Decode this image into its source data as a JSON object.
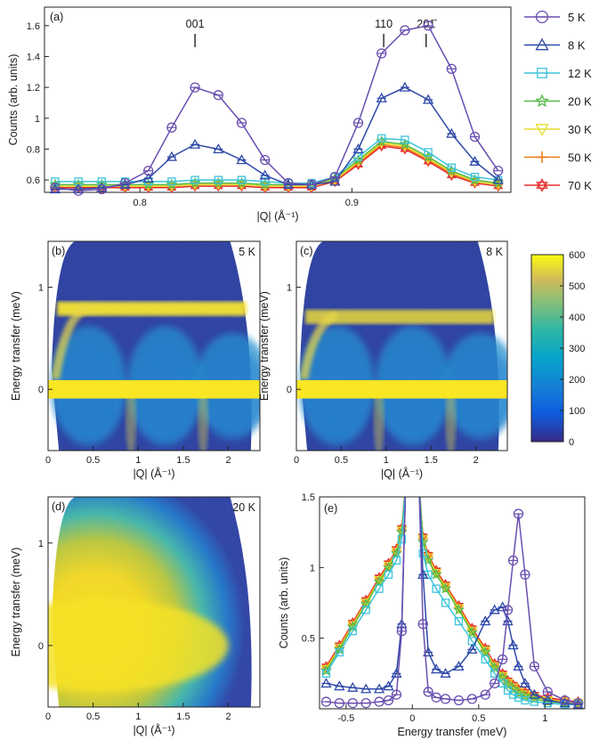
{
  "chart_data": [
    {
      "panel": "(a)",
      "type": "line",
      "xlabel": "|Q| (Å⁻¹)",
      "ylabel": "Counts (arb. units)",
      "xlim": [
        0.755,
        0.975
      ],
      "ylim": [
        0.52,
        1.72
      ],
      "xticks": [
        "0.8",
        "0.9"
      ],
      "yticks": [
        "0.6",
        "0.8",
        "1",
        "1.2",
        "1.4",
        "1.6"
      ],
      "bragg_labels": [
        "001",
        "110",
        "201̄"
      ],
      "legend_position": "right",
      "x": [
        0.76,
        0.771,
        0.782,
        0.793,
        0.804,
        0.815,
        0.826,
        0.837,
        0.848,
        0.859,
        0.87,
        0.881,
        0.892,
        0.903,
        0.914,
        0.925,
        0.936,
        0.947,
        0.958,
        0.969
      ],
      "series": [
        {
          "name": "5 K",
          "marker": "circle",
          "color": "#6a4fb0",
          "values": [
            0.55,
            0.53,
            0.54,
            0.58,
            0.66,
            0.94,
            1.2,
            1.15,
            0.97,
            0.73,
            0.58,
            0.57,
            0.62,
            0.97,
            1.42,
            1.57,
            1.6,
            1.32,
            0.88,
            0.66
          ]
        },
        {
          "name": "8 K",
          "marker": "triangle-up",
          "color": "#2f49a8",
          "values": [
            0.54,
            0.54,
            0.55,
            0.57,
            0.61,
            0.75,
            0.83,
            0.8,
            0.73,
            0.63,
            0.57,
            0.57,
            0.59,
            0.8,
            1.13,
            1.2,
            1.12,
            0.9,
            0.72,
            0.6
          ]
        },
        {
          "name": "12 K",
          "marker": "square",
          "color": "#3cc4dc",
          "values": [
            0.59,
            0.59,
            0.59,
            0.59,
            0.59,
            0.59,
            0.6,
            0.6,
            0.6,
            0.59,
            0.58,
            0.58,
            0.62,
            0.75,
            0.87,
            0.86,
            0.78,
            0.68,
            0.62,
            0.6
          ]
        },
        {
          "name": "20 K",
          "marker": "star",
          "color": "#56b848",
          "values": [
            0.57,
            0.57,
            0.57,
            0.57,
            0.57,
            0.57,
            0.58,
            0.58,
            0.58,
            0.57,
            0.57,
            0.57,
            0.61,
            0.73,
            0.85,
            0.83,
            0.75,
            0.66,
            0.6,
            0.58
          ]
        },
        {
          "name": "30 K",
          "marker": "triangle-down",
          "color": "#e6dc2a",
          "values": [
            0.56,
            0.56,
            0.56,
            0.56,
            0.56,
            0.56,
            0.57,
            0.57,
            0.57,
            0.56,
            0.56,
            0.56,
            0.6,
            0.72,
            0.84,
            0.82,
            0.74,
            0.65,
            0.59,
            0.57
          ]
        },
        {
          "name": "50 K",
          "marker": "plus",
          "color": "#ee7d1a",
          "values": [
            0.56,
            0.56,
            0.56,
            0.56,
            0.56,
            0.56,
            0.57,
            0.57,
            0.57,
            0.56,
            0.56,
            0.56,
            0.6,
            0.71,
            0.83,
            0.81,
            0.73,
            0.64,
            0.59,
            0.57
          ]
        },
        {
          "name": "70 K",
          "marker": "hexagram",
          "color": "#e52b2b",
          "values": [
            0.55,
            0.55,
            0.55,
            0.55,
            0.55,
            0.55,
            0.56,
            0.56,
            0.56,
            0.55,
            0.55,
            0.55,
            0.59,
            0.7,
            0.82,
            0.8,
            0.72,
            0.63,
            0.58,
            0.56
          ]
        }
      ]
    },
    {
      "panel": "(b)",
      "type": "heatmap",
      "temperature": "5 K",
      "xlabel": "|Q| (Å⁻¹)",
      "ylabel": "Energy transfer (meV)",
      "xlim": [
        0,
        2.35
      ],
      "ylim": [
        -0.6,
        1.45
      ],
      "xticks": [
        "0",
        "0.5",
        "1",
        "1.5",
        "2"
      ],
      "yticks": [
        "0",
        "1"
      ],
      "features": {
        "elastic_line_meV": 0,
        "flat_band_meV": 0.8,
        "dispersion_minima_Q": [
          0.92,
          1.72
        ]
      }
    },
    {
      "panel": "(c)",
      "type": "heatmap",
      "temperature": "8 K",
      "xlabel": "|Q| (Å⁻¹)",
      "ylabel": "Energy transfer (meV)",
      "xlim": [
        0,
        2.35
      ],
      "ylim": [
        -0.6,
        1.45
      ],
      "xticks": [
        "0",
        "0.5",
        "1",
        "1.5",
        "2"
      ],
      "yticks": [
        "0",
        "1"
      ],
      "features": {
        "elastic_line_meV": 0,
        "flat_band_meV": 0.72,
        "dispersion_minima_Q": [
          0.92,
          1.72
        ]
      }
    },
    {
      "panel": "colorbar",
      "type": "heatmap",
      "colorscale": "parula",
      "range": [
        0,
        600
      ],
      "ticks": [
        "0",
        "100",
        "200",
        "300",
        "400",
        "500",
        "600"
      ]
    },
    {
      "panel": "(d)",
      "type": "heatmap",
      "temperature": "20 K",
      "xlabel": "|Q| (Å⁻¹)",
      "ylabel": "Energy transfer (meV)",
      "xlim": [
        0,
        2.35
      ],
      "ylim": [
        -0.6,
        1.45
      ],
      "xticks": [
        "0",
        "0.5",
        "1",
        "1.5",
        "2"
      ],
      "yticks": [
        "0",
        "1"
      ],
      "features": {
        "quasielastic_center_meV": 0
      }
    },
    {
      "panel": "(e)",
      "type": "line",
      "xlabel": "Energy transfer (meV)",
      "ylabel": "Counts (arb. units)",
      "xlim": [
        -0.7,
        1.3
      ],
      "ylim": [
        0,
        1.5
      ],
      "xticks": [
        "-0.5",
        "0",
        "0.5",
        "1"
      ],
      "yticks": [
        "0.5",
        "1",
        "1.5"
      ],
      "x": [
        -0.65,
        -0.55,
        -0.45,
        -0.35,
        -0.25,
        -0.18,
        -0.12,
        -0.08,
        0.08,
        0.12,
        0.18,
        0.25,
        0.35,
        0.45,
        0.55,
        0.62,
        0.68,
        0.72,
        0.76,
        0.8,
        0.85,
        0.92,
        1.02,
        1.15,
        1.25
      ],
      "series": [
        {
          "name": "5 K",
          "color": "#6a4fb0",
          "values": [
            0.05,
            0.04,
            0.04,
            0.04,
            0.05,
            0.06,
            0.1,
            0.55,
            0.6,
            0.12,
            0.08,
            0.07,
            0.06,
            0.07,
            0.1,
            0.18,
            0.35,
            0.7,
            1.05,
            1.38,
            0.95,
            0.3,
            0.12,
            0.06,
            0.04
          ]
        },
        {
          "name": "8 K",
          "color": "#2f49a8",
          "values": [
            0.18,
            0.16,
            0.15,
            0.14,
            0.14,
            0.16,
            0.25,
            0.6,
            0.95,
            0.4,
            0.28,
            0.25,
            0.3,
            0.42,
            0.62,
            0.7,
            0.72,
            0.62,
            0.45,
            0.3,
            0.18,
            0.1,
            0.06,
            0.04,
            0.03
          ]
        },
        {
          "name": "12 K",
          "color": "#3cc4dc",
          "values": [
            0.25,
            0.4,
            0.55,
            0.7,
            0.85,
            0.95,
            1.05,
            1.2,
            1.1,
            0.95,
            0.85,
            0.75,
            0.62,
            0.48,
            0.35,
            0.25,
            0.18,
            0.13,
            0.1,
            0.08,
            0.06,
            0.05,
            0.04,
            0.03,
            0.03
          ]
        },
        {
          "name": "20 K",
          "color": "#56b848",
          "values": [
            0.27,
            0.42,
            0.58,
            0.74,
            0.9,
            1.0,
            1.1,
            1.25,
            1.18,
            1.05,
            0.95,
            0.85,
            0.7,
            0.54,
            0.4,
            0.29,
            0.22,
            0.17,
            0.14,
            0.11,
            0.09,
            0.07,
            0.05,
            0.04,
            0.03
          ]
        },
        {
          "name": "30 K",
          "color": "#e6dc2a",
          "values": [
            0.28,
            0.43,
            0.59,
            0.75,
            0.91,
            1.01,
            1.11,
            1.26,
            1.2,
            1.07,
            0.96,
            0.86,
            0.71,
            0.55,
            0.41,
            0.3,
            0.23,
            0.18,
            0.15,
            0.12,
            0.1,
            0.08,
            0.06,
            0.05,
            0.04
          ]
        },
        {
          "name": "50 K",
          "color": "#ee7d1a",
          "values": [
            0.29,
            0.44,
            0.6,
            0.76,
            0.92,
            1.02,
            1.12,
            1.27,
            1.21,
            1.08,
            0.97,
            0.87,
            0.72,
            0.56,
            0.42,
            0.31,
            0.24,
            0.19,
            0.16,
            0.13,
            0.11,
            0.09,
            0.07,
            0.05,
            0.04
          ]
        },
        {
          "name": "70 K",
          "color": "#e52b2b",
          "values": [
            0.3,
            0.45,
            0.61,
            0.77,
            0.93,
            1.03,
            1.13,
            1.28,
            1.22,
            1.09,
            0.98,
            0.88,
            0.73,
            0.57,
            0.43,
            0.32,
            0.25,
            0.2,
            0.17,
            0.14,
            0.12,
            0.1,
            0.08,
            0.06,
            0.05
          ]
        }
      ]
    }
  ]
}
